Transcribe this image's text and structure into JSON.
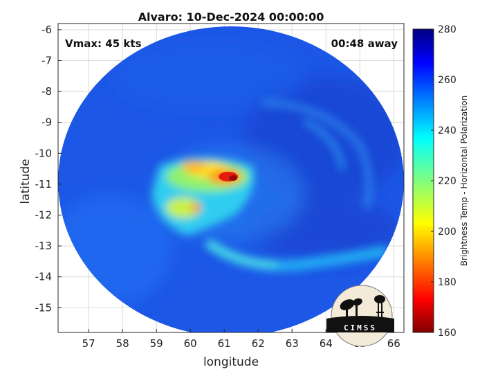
{
  "chart_data": {
    "type": "heatmap",
    "title": "Alvaro: 10-Dec-2024 00:00:00",
    "xlabel": "longitude",
    "ylabel": "latitude",
    "xlim": [
      56.1,
      66.3
    ],
    "ylim": [
      -15.8,
      -5.8
    ],
    "x_ticks": [
      57,
      58,
      59,
      60,
      61,
      62,
      63,
      64,
      65,
      66
    ],
    "y_ticks": [
      -6,
      -7,
      -8,
      -9,
      -10,
      -11,
      -12,
      -13,
      -14,
      -15
    ],
    "grid": true,
    "colorbar": {
      "label": "Brightness Temp - Horizontal Polarization",
      "min": 160,
      "max": 280,
      "ticks": [
        280,
        260,
        240,
        220,
        200,
        180,
        160
      ],
      "colormap": "jet"
    },
    "annotations": {
      "vmax": "Vmax: 45 kts",
      "time_offset": "00:48 away"
    },
    "swath": {
      "center_lon": 61.2,
      "center_lat": -10.7,
      "background_tb": 262
    },
    "features": [
      {
        "lon": 61.0,
        "lat": -10.7,
        "tb": 172
      },
      {
        "lon": 60.5,
        "lat": -10.5,
        "tb": 195
      },
      {
        "lon": 59.9,
        "lat": -10.5,
        "tb": 200
      },
      {
        "lon": 59.2,
        "lat": -10.7,
        "tb": 220
      },
      {
        "lon": 59.2,
        "lat": -11.3,
        "tb": 225
      },
      {
        "lon": 59.2,
        "lat": -11.75,
        "tb": 205
      },
      {
        "lon": 59.7,
        "lat": -12.0,
        "tb": 215
      },
      {
        "lon": 60.5,
        "lat": -11.7,
        "tb": 230
      },
      {
        "lon": 60.5,
        "lat": -12.8,
        "tb": 235
      },
      {
        "lon": 61.5,
        "lat": -13.4,
        "tb": 232
      },
      {
        "lon": 62.6,
        "lat": -13.5,
        "tb": 235
      },
      {
        "lon": 63.8,
        "lat": -13.4,
        "tb": 237
      },
      {
        "lon": 65.0,
        "lat": -13.3,
        "tb": 238
      },
      {
        "lon": 62.5,
        "lat": -8.5,
        "tb": 250
      },
      {
        "lon": 64.2,
        "lat": -9.6,
        "tb": 252
      }
    ],
    "logo": {
      "text": "CIMSS"
    }
  }
}
